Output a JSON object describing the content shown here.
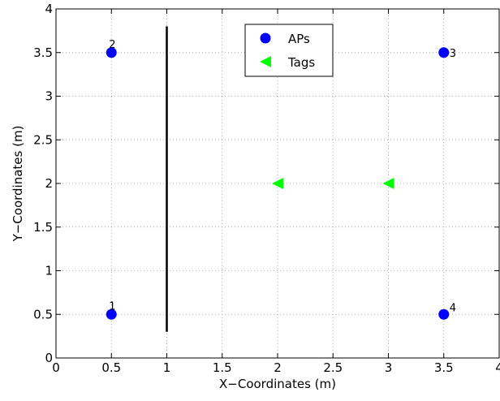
{
  "chart_data": {
    "type": "scatter",
    "title": "",
    "xlabel": "X−Coordinates (m)",
    "ylabel": "Y−Coordinates (m)",
    "xlim": [
      0,
      4
    ],
    "ylim": [
      0,
      4
    ],
    "xticks": [
      "0",
      "0.5",
      "1",
      "1.5",
      "2",
      "2.5",
      "3",
      "3.5",
      "4"
    ],
    "yticks": [
      "0",
      "0.5",
      "1",
      "1.5",
      "2",
      "2.5",
      "3",
      "3.5",
      "4"
    ],
    "grid": true,
    "legend_position": "top-center",
    "series": [
      {
        "name": "APs",
        "marker": "circle",
        "color": "#0000ff",
        "points": [
          {
            "x": 0.5,
            "y": 0.5,
            "label": "1"
          },
          {
            "x": 0.5,
            "y": 3.5,
            "label": "2"
          },
          {
            "x": 3.5,
            "y": 3.5,
            "label": "3"
          },
          {
            "x": 3.5,
            "y": 0.5,
            "label": "4"
          }
        ]
      },
      {
        "name": "Tags",
        "marker": "triangle-left",
        "color": "#00ff00",
        "points": [
          {
            "x": 2.0,
            "y": 2.0
          },
          {
            "x": 3.0,
            "y": 2.0
          }
        ]
      }
    ],
    "walls": [
      {
        "x1": 1.0,
        "y1": 0.3,
        "x2": 1.0,
        "y2": 3.8,
        "color": "#000000"
      }
    ]
  }
}
